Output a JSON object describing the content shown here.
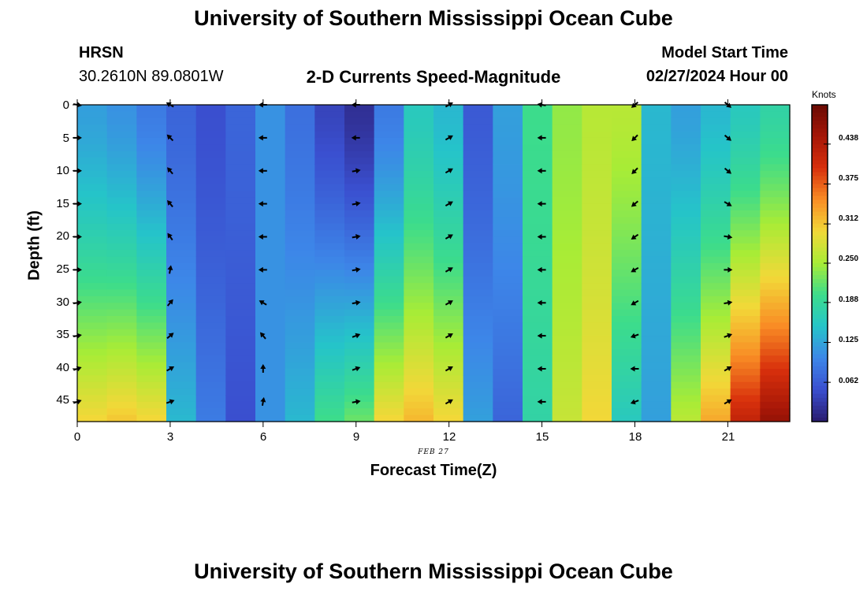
{
  "page": {
    "title_top": "University of Southern Mississippi Ocean Cube",
    "title_bottom": "University of Southern Mississippi Ocean Cube",
    "station": "HRSN",
    "coords": "30.2610N  89.0801W",
    "subtitle": "2-D Currents Speed-Magnitude",
    "model_label": "Model Start Time",
    "model_time": "02/27/2024 Hour 00",
    "date_label": "FEB 27"
  },
  "colors": {
    "ramp": [
      "#2a1b6e",
      "#3a4fcf",
      "#3d86e8",
      "#25c4c9",
      "#3cdc8c",
      "#a8ec36",
      "#f2d838",
      "#f98d25",
      "#d8300c",
      "#a51607",
      "#6a0a03"
    ]
  },
  "chart_data": {
    "type": "heatmap",
    "title": "2-D Currents Speed-Magnitude",
    "xlabel": "Forecast Time(Z)",
    "ylabel": "Depth (ft)",
    "x_range": [
      0,
      23
    ],
    "y_range": [
      0,
      48
    ],
    "x_ticks": [
      "0",
      "3",
      "6",
      "9",
      "12",
      "15",
      "18",
      "21"
    ],
    "y_ticks": [
      "0",
      "5",
      "10",
      "15",
      "20",
      "25",
      "30",
      "35",
      "40",
      "45"
    ],
    "colorbar": {
      "label": "Knots",
      "range": [
        0,
        0.5
      ],
      "ticks": [
        "0.062",
        "0.125",
        "0.188",
        "0.250",
        "0.312",
        "0.375",
        "0.438"
      ]
    },
    "hours": [
      0,
      1,
      2,
      3,
      4,
      5,
      6,
      7,
      8,
      9,
      10,
      11,
      12,
      13,
      14,
      15,
      16,
      17,
      18,
      19,
      20,
      21,
      22,
      23
    ],
    "surface_speed": [
      0.12,
      0.11,
      0.09,
      0.07,
      0.05,
      0.07,
      0.11,
      0.08,
      0.04,
      0.02,
      0.09,
      0.16,
      0.14,
      0.06,
      0.12,
      0.2,
      0.24,
      0.26,
      0.26,
      0.14,
      0.12,
      0.14,
      0.16,
      0.18
    ],
    "bottom_speed": [
      0.3,
      0.31,
      0.3,
      0.14,
      0.09,
      0.05,
      0.11,
      0.14,
      0.2,
      0.22,
      0.3,
      0.32,
      0.3,
      0.12,
      0.07,
      0.18,
      0.27,
      0.3,
      0.16,
      0.12,
      0.26,
      0.33,
      0.42,
      0.46
    ],
    "vector_hours": [
      0,
      3,
      6,
      9,
      12,
      15,
      18,
      21
    ],
    "vector_depths": [
      0,
      5,
      10,
      15,
      20,
      25,
      30,
      35,
      40,
      45
    ],
    "vector_directions_deg": [
      [
        100,
        90,
        90,
        90,
        90,
        90,
        80,
        80,
        70,
        70
      ],
      [
        300,
        315,
        320,
        320,
        325,
        10,
        40,
        50,
        60,
        70
      ],
      [
        270,
        270,
        270,
        270,
        270,
        270,
        300,
        320,
        0,
        10
      ],
      [
        270,
        270,
        80,
        80,
        80,
        80,
        80,
        70,
        70,
        80
      ],
      [
        60,
        60,
        60,
        60,
        60,
        60,
        60,
        60,
        60,
        60
      ],
      [
        280,
        270,
        270,
        270,
        270,
        270,
        270,
        270,
        270,
        270
      ],
      [
        230,
        225,
        225,
        230,
        235,
        240,
        240,
        250,
        270,
        250
      ],
      [
        130,
        130,
        130,
        120,
        100,
        90,
        80,
        70,
        60,
        60
      ]
    ]
  }
}
